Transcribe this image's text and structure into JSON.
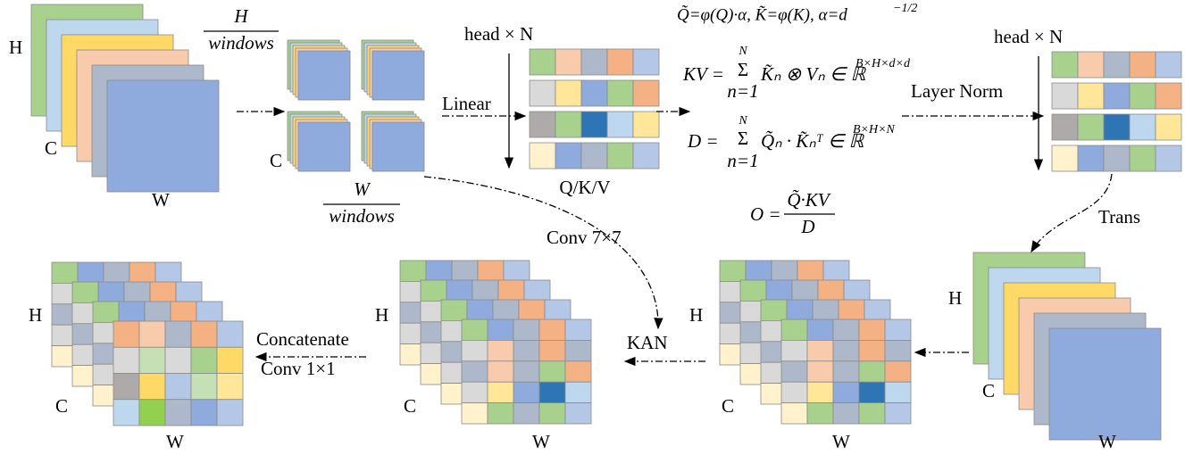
{
  "input": {
    "h": "H",
    "c": "C",
    "w": "W"
  },
  "windows": {
    "h_num": "H",
    "h_den": "windows",
    "w_num": "W",
    "w_den": "windows",
    "c": "C"
  },
  "attention": {
    "head_left": "head × N",
    "linear": "Linear",
    "qkv": "Q/K/V",
    "layer_norm": "Layer Norm",
    "head_right": "head × N",
    "trans": "Trans"
  },
  "formulas": {
    "qk": "Q̃=φ(Q)·α, K̃=φ(K), α=d",
    "qk_exp": "−1/2",
    "kv_lhs": "KV =",
    "kv_top": "N",
    "kv_sum": "Σ",
    "kv_bottom": "n=1",
    "kv_body": "K̃ₙ ⊗ Vₙ ∈ ℝ",
    "kv_exp": "B×H×d×d",
    "d_lhs": "D =",
    "d_top": "N",
    "d_sum": "Σ",
    "d_bottom": "n=1",
    "d_body": "Q̃ₙ · K̃ₙᵀ ∈ ℝ",
    "d_exp": "B×H×N",
    "o_lhs": "O =",
    "o_num": "Q̃·KV",
    "o_den": "D"
  },
  "stack_right": {
    "h": "H",
    "c": "C",
    "w": "W"
  },
  "grid_right": {
    "h": "H",
    "c": "C",
    "w": "W"
  },
  "kan": "KAN",
  "conv7": "Conv 7×7",
  "grid_middle": {
    "h": "H",
    "c": "C",
    "w": "W"
  },
  "concat": "Concatenate",
  "conv1": "Conv 1×1",
  "grid_left": {
    "h": "H",
    "c": "C",
    "w": "W"
  }
}
